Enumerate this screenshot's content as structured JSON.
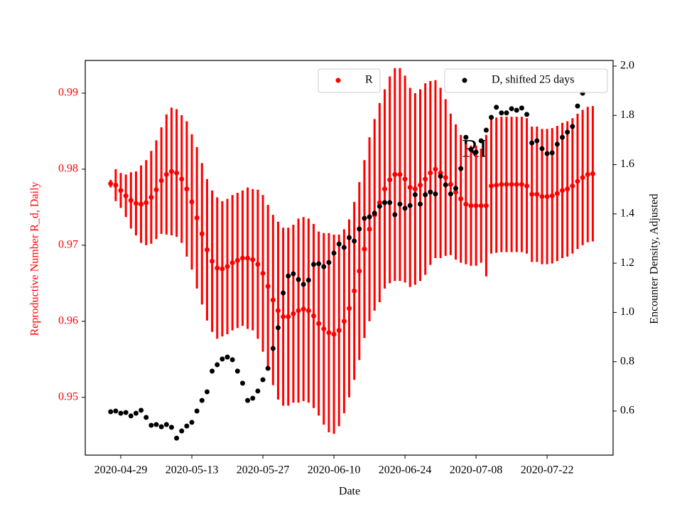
{
  "chart_data": {
    "type": "scatter",
    "xlabel": "Date",
    "ylabel": "Reproductive Number R_d, Daily",
    "y2label": "Encounter Density, Adjusted",
    "annotation": "RI",
    "x": [
      "2020-04-27",
      "2020-04-28",
      "2020-04-29",
      "2020-04-30",
      "2020-05-01",
      "2020-05-02",
      "2020-05-03",
      "2020-05-04",
      "2020-05-05",
      "2020-05-06",
      "2020-05-07",
      "2020-05-08",
      "2020-05-09",
      "2020-05-10",
      "2020-05-11",
      "2020-05-12",
      "2020-05-13",
      "2020-05-14",
      "2020-05-15",
      "2020-05-16",
      "2020-05-17",
      "2020-05-18",
      "2020-05-19",
      "2020-05-20",
      "2020-05-21",
      "2020-05-22",
      "2020-05-23",
      "2020-05-24",
      "2020-05-25",
      "2020-05-26",
      "2020-05-27",
      "2020-05-28",
      "2020-05-29",
      "2020-05-30",
      "2020-05-31",
      "2020-06-01",
      "2020-06-02",
      "2020-06-03",
      "2020-06-04",
      "2020-06-05",
      "2020-06-06",
      "2020-06-07",
      "2020-06-08",
      "2020-06-09",
      "2020-06-10",
      "2020-06-11",
      "2020-06-12",
      "2020-06-13",
      "2020-06-14",
      "2020-06-15",
      "2020-06-16",
      "2020-06-17",
      "2020-06-18",
      "2020-06-19",
      "2020-06-20",
      "2020-06-21",
      "2020-06-22",
      "2020-06-23",
      "2020-06-24",
      "2020-06-25",
      "2020-06-26",
      "2020-06-27",
      "2020-06-28",
      "2020-06-29",
      "2020-06-30",
      "2020-07-01",
      "2020-07-02",
      "2020-07-03",
      "2020-07-04",
      "2020-07-05",
      "2020-07-06",
      "2020-07-07",
      "2020-07-08",
      "2020-07-09",
      "2020-07-10",
      "2020-07-11",
      "2020-07-12",
      "2020-07-13",
      "2020-07-14",
      "2020-07-15",
      "2020-07-16",
      "2020-07-17",
      "2020-07-18",
      "2020-07-19",
      "2020-07-20",
      "2020-07-21",
      "2020-07-22",
      "2020-07-23",
      "2020-07-24",
      "2020-07-25",
      "2020-07-26",
      "2020-07-27",
      "2020-07-28",
      "2020-07-29",
      "2020-07-30",
      "2020-07-31"
    ],
    "xlim": [
      "2020-04-22",
      "2020-08-04"
    ],
    "xticks": [
      "2020-04-29",
      "2020-05-13",
      "2020-05-27",
      "2020-06-10",
      "2020-06-24",
      "2020-07-08",
      "2020-07-22"
    ],
    "ylim": [
      0.9424,
      0.9943
    ],
    "yticks": [
      0.95,
      0.96,
      0.97,
      0.98,
      0.99
    ],
    "y2lim": [
      0.421,
      2.023
    ],
    "y2ticks": [
      0.6,
      0.8,
      {
        "value": 1,
        "label": "1.0"
      },
      1.2,
      1.4,
      1.6,
      1.8,
      {
        "value": 2,
        "label": "2.0"
      }
    ],
    "series": [
      {
        "name": "R",
        "color": "#ff0000",
        "axis": "y",
        "values": [
          0.9781,
          0.9779,
          0.9772,
          0.9765,
          0.9759,
          0.9755,
          0.9754,
          0.9756,
          0.9763,
          0.9773,
          0.9785,
          0.9793,
          0.9797,
          0.9795,
          0.9787,
          0.9774,
          0.9757,
          0.9736,
          0.9715,
          0.9694,
          0.9679,
          0.967,
          0.9669,
          0.9672,
          0.9677,
          0.968,
          0.9683,
          0.9683,
          0.9681,
          0.9675,
          0.9663,
          0.9646,
          0.9628,
          0.9614,
          0.9606,
          0.9606,
          0.961,
          0.9614,
          0.9616,
          0.9614,
          0.9607,
          0.9597,
          0.959,
          0.9585,
          0.9583,
          0.9588,
          0.96,
          0.9617,
          0.964,
          0.9666,
          0.9695,
          0.9721,
          0.974,
          0.9756,
          0.9774,
          0.9786,
          0.9793,
          0.9793,
          0.9787,
          0.9776,
          0.9774,
          0.9779,
          0.9787,
          0.9795,
          0.98,
          0.9795,
          0.9789,
          0.978,
          0.977,
          0.9761,
          0.9754,
          0.9752,
          0.9752,
          0.9752,
          0.9752,
          0.9778,
          0.9779,
          0.978,
          0.978,
          0.978,
          0.978,
          0.978,
          0.9778,
          0.9767,
          0.9767,
          0.9764,
          0.9764,
          0.9765,
          0.9768,
          0.9772,
          0.9774,
          0.9778,
          0.9784,
          0.9789,
          0.9793,
          0.9794
        ],
        "errors": [
          0.0005,
          0.0021,
          0.0023,
          0.0028,
          0.0037,
          0.0042,
          0.0051,
          0.0056,
          0.0061,
          0.0065,
          0.007,
          0.0079,
          0.0084,
          0.0084,
          0.0084,
          0.0089,
          0.0089,
          0.0093,
          0.0093,
          0.0093,
          0.0093,
          0.0093,
          0.0089,
          0.0089,
          0.0089,
          0.0089,
          0.0089,
          0.0093,
          0.0093,
          0.0098,
          0.0103,
          0.0107,
          0.0112,
          0.0117,
          0.0117,
          0.0117,
          0.0117,
          0.0121,
          0.0121,
          0.0121,
          0.0121,
          0.0121,
          0.0126,
          0.0131,
          0.0131,
          0.0126,
          0.0121,
          0.0117,
          0.0117,
          0.0117,
          0.0117,
          0.0121,
          0.0126,
          0.0131,
          0.0131,
          0.0136,
          0.014,
          0.014,
          0.0136,
          0.0131,
          0.0126,
          0.0126,
          0.0126,
          0.0121,
          0.0117,
          0.0112,
          0.0103,
          0.0093,
          0.0089,
          0.0084,
          0.0079,
          0.0079,
          0.0079,
          0.0075,
          0.0093,
          0.0089,
          0.0089,
          0.0089,
          0.0089,
          0.0089,
          0.0089,
          0.0089,
          0.0089,
          0.0089,
          0.0089,
          0.0089,
          0.0089,
          0.0089,
          0.0089,
          0.0089,
          0.0089,
          0.0089,
          0.0089,
          0.0089,
          0.0089,
          0.0089
        ]
      },
      {
        "name": "D, shifted 25 days",
        "color": "#000000",
        "axis": "y2",
        "values": [
          0.597,
          0.6,
          0.591,
          0.594,
          0.58,
          0.591,
          0.603,
          0.574,
          0.542,
          0.545,
          0.536,
          0.545,
          0.534,
          0.49,
          0.519,
          0.539,
          0.554,
          0.6,
          0.643,
          0.678,
          0.762,
          0.788,
          0.811,
          0.819,
          0.808,
          0.762,
          0.713,
          0.643,
          0.652,
          0.681,
          0.727,
          0.773,
          0.854,
          0.938,
          1.079,
          1.148,
          1.157,
          1.134,
          1.114,
          1.131,
          1.195,
          1.198,
          1.186,
          1.203,
          1.241,
          1.278,
          1.264,
          1.304,
          1.29,
          1.339,
          1.382,
          1.388,
          1.403,
          1.431,
          1.446,
          1.446,
          1.397,
          1.44,
          1.423,
          1.434,
          1.478,
          1.44,
          1.478,
          1.489,
          1.481,
          1.553,
          1.518,
          1.481,
          1.504,
          1.584,
          1.711,
          1.662,
          1.651,
          1.697,
          1.74,
          1.792,
          1.833,
          1.81,
          1.81,
          1.827,
          1.821,
          1.83,
          1.804,
          1.688,
          1.697,
          1.665,
          1.645,
          1.648,
          1.683,
          1.711,
          1.732,
          1.755,
          1.838,
          1.89,
          null,
          null
        ]
      }
    ]
  }
}
